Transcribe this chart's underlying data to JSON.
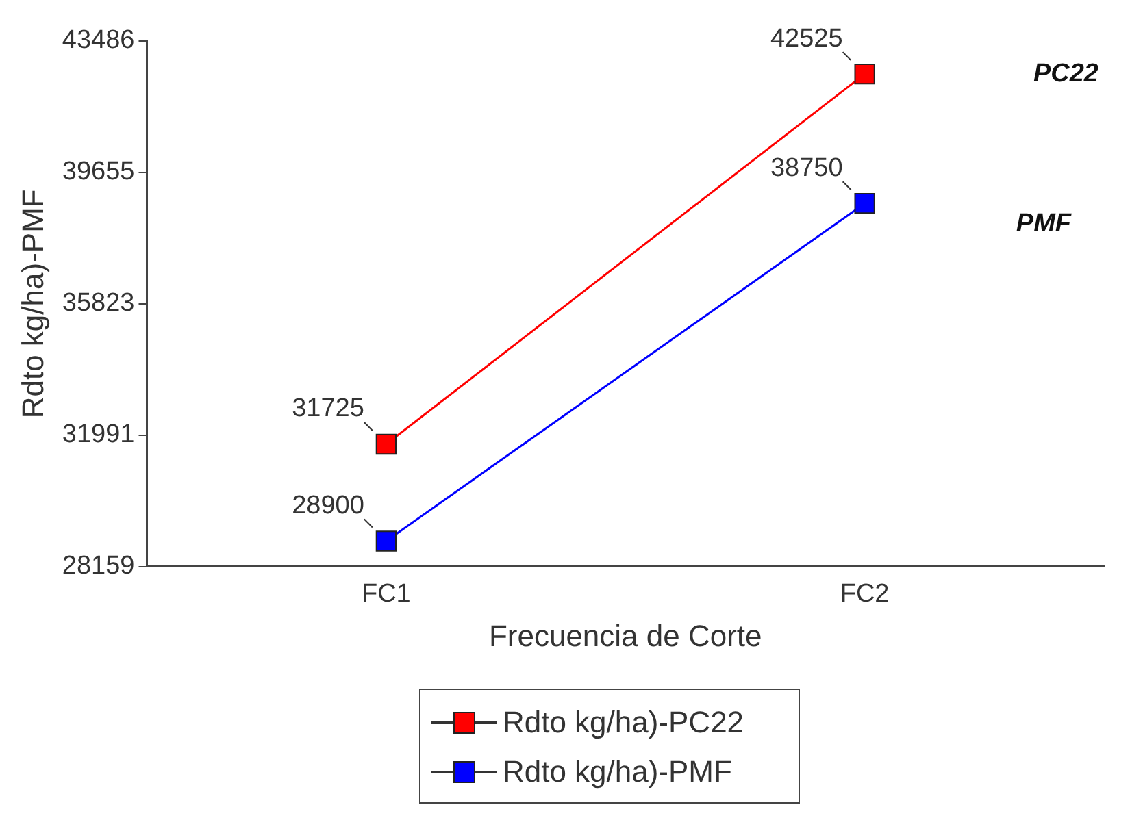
{
  "chart_data": {
    "type": "line",
    "xlabel": "Frecuencia de Corte",
    "ylabel": "Rdto kg/ha)-PMF",
    "categories": [
      "FC1",
      "FC2"
    ],
    "series": [
      {
        "name": "Rdto kg/ha)-PC22",
        "color": "#ff0000",
        "values": [
          31725,
          42525
        ]
      },
      {
        "name": "Rdto kg/ha)-PMF",
        "color": "#0000ff",
        "values": [
          28900,
          38750
        ]
      }
    ],
    "ylim": [
      28159,
      43486
    ],
    "yticks": [
      28159,
      31991,
      35823,
      39655,
      43486
    ],
    "annotations": [
      "PC22",
      "PMF"
    ],
    "data_labels": true,
    "legend": "bottom",
    "marker": "square",
    "grid": false
  }
}
